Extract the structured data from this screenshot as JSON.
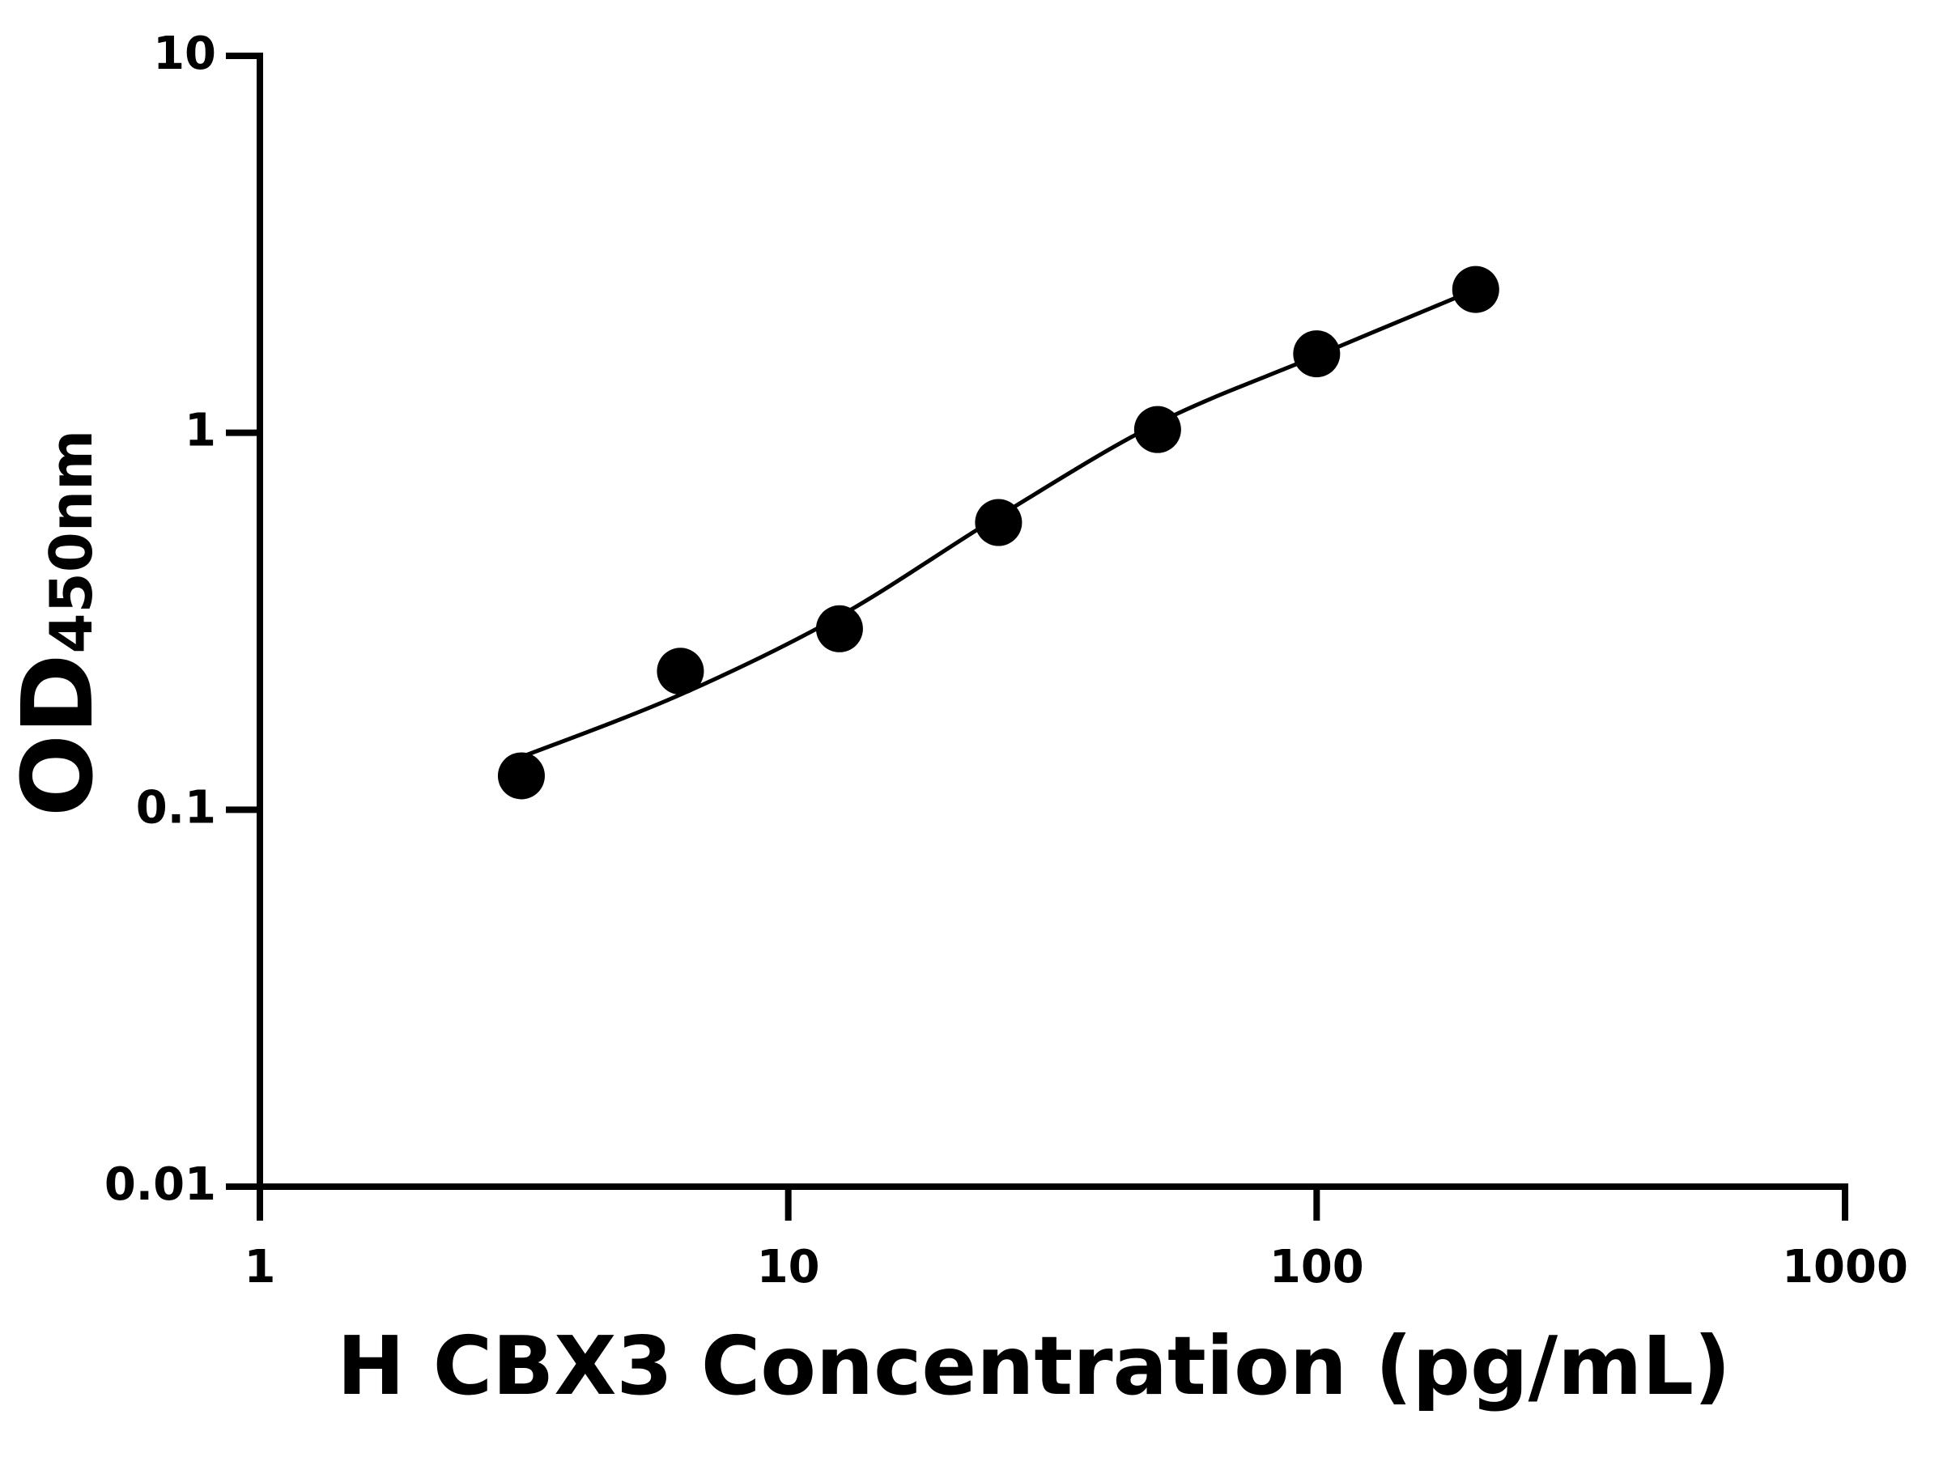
{
  "chart_data": {
    "type": "scatter",
    "xlabel": "H CBX3 Concentration (pg/mL)",
    "ylabel": "OD",
    "ylabel_sub": "450nm",
    "x": [
      3.125,
      6.25,
      12.5,
      25,
      50,
      100,
      200
    ],
    "values": [
      0.123,
      0.233,
      0.302,
      0.578,
      1.02,
      1.62,
      2.4
    ],
    "color": "#000000",
    "curve": {
      "x": [
        3.125,
        6.25,
        12.5,
        25,
        50,
        100,
        200
      ],
      "values": [
        0.138,
        0.202,
        0.326,
        0.6,
        1.06,
        1.6,
        2.4
      ]
    },
    "xlog": true,
    "ylog": true,
    "xlim": [
      1,
      1000
    ],
    "ylim": [
      0.01,
      10
    ],
    "xticks": [
      1,
      10,
      100,
      1000
    ],
    "yticks": [
      0.01,
      0.1,
      1,
      10
    ]
  }
}
